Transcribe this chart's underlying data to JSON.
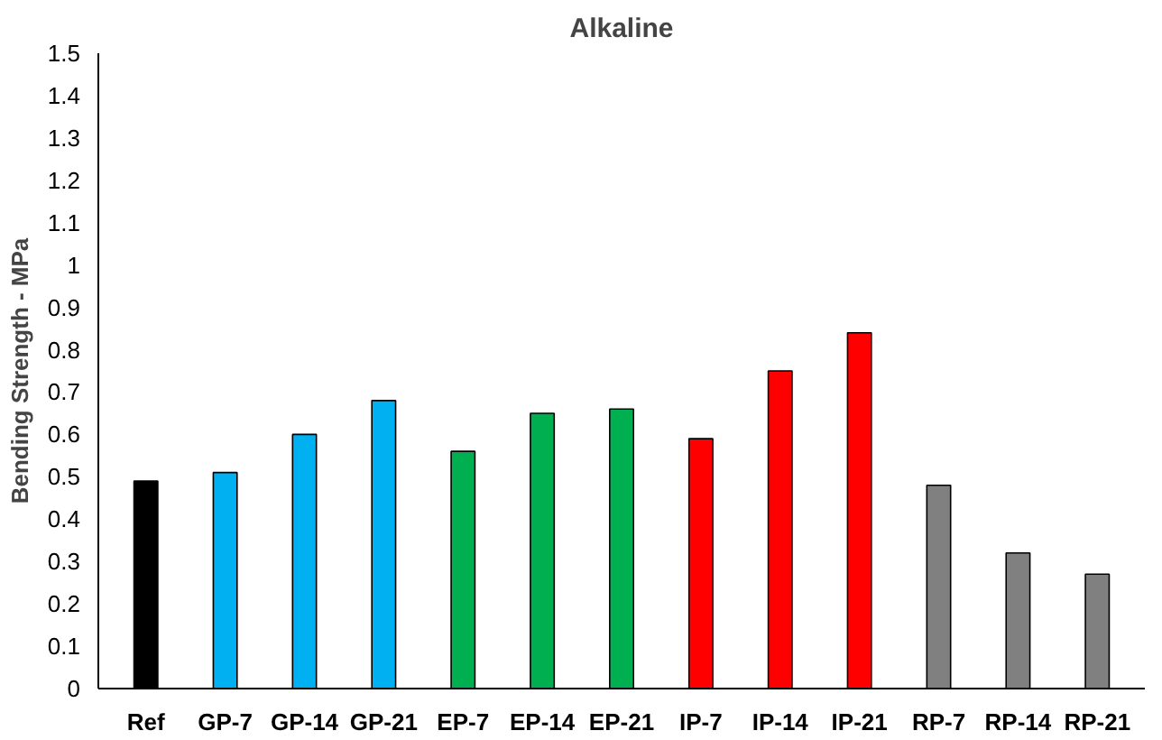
{
  "chart_data": {
    "type": "bar",
    "title": "Alkaline",
    "ylabel": "Bending Strength - MPa",
    "categories": [
      "Ref",
      "GP-7",
      "GP-14",
      "GP-21",
      "EP-7",
      "EP-14",
      "EP-21",
      "IP-7",
      "IP-14",
      "IP-21",
      "RP-7",
      "RP-14",
      "RP-21"
    ],
    "values": [
      0.49,
      0.51,
      0.6,
      0.68,
      0.56,
      0.65,
      0.66,
      0.59,
      0.75,
      0.84,
      0.48,
      0.32,
      0.27
    ],
    "colors": [
      "#000000",
      "#00b0f0",
      "#00b0f0",
      "#00b0f0",
      "#00b050",
      "#00b050",
      "#00b050",
      "#ff0000",
      "#ff0000",
      "#ff0000",
      "#808080",
      "#808080",
      "#808080"
    ],
    "ylim": [
      0,
      1.5
    ],
    "yticks": [
      0,
      0.1,
      0.2,
      0.3,
      0.4,
      0.5,
      0.6,
      0.7,
      0.8,
      0.9,
      1,
      1.1,
      1.2,
      1.3,
      1.4,
      1.5
    ],
    "grid": false
  }
}
